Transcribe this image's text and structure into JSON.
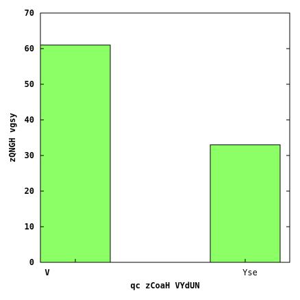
{
  "chart_data": {
    "type": "bar",
    "title": "",
    "xlabel": "qc zCoaH VYdUN",
    "ylabel": "zQNGH vgsy",
    "categories": [
      "V",
      "Yse"
    ],
    "values": [
      61,
      33
    ],
    "ylim": [
      0,
      70
    ],
    "yticks": [
      0,
      10,
      20,
      30,
      40,
      50,
      60,
      70
    ],
    "grid": false,
    "bar_color": "#8cff66",
    "bar_edge_color": "#000000"
  }
}
